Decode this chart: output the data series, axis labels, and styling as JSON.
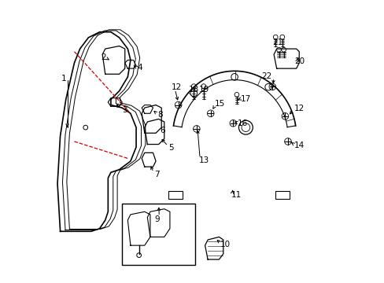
{
  "bg_color": "#ffffff",
  "line_color": "#000000",
  "red_color": "#cc0000"
}
